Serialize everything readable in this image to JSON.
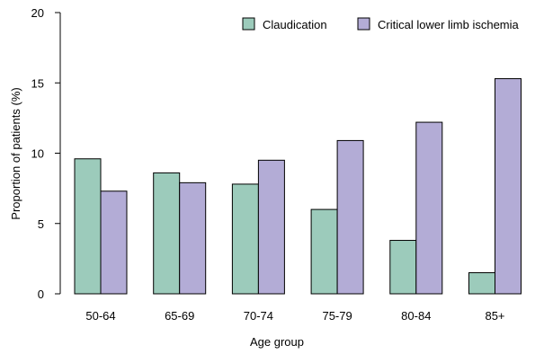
{
  "chart_data": {
    "type": "bar",
    "categories": [
      "50-64",
      "65-69",
      "70-74",
      "75-79",
      "80-84",
      "85+"
    ],
    "series": [
      {
        "name": "Claudication",
        "color": "#9ccbbb",
        "values": [
          9.6,
          8.6,
          7.8,
          6.0,
          3.8,
          1.5
        ]
      },
      {
        "name": "Critical lower limb ischemia",
        "color": "#b3acd6",
        "values": [
          7.3,
          7.9,
          9.5,
          10.9,
          12.2,
          15.3
        ]
      }
    ],
    "xlabel": "Age group",
    "ylabel": "Proportion of patients (%)",
    "ylim": [
      0,
      20
    ],
    "yticks": [
      0,
      5,
      10,
      15,
      20
    ],
    "grid": false,
    "legend": "top-right"
  }
}
